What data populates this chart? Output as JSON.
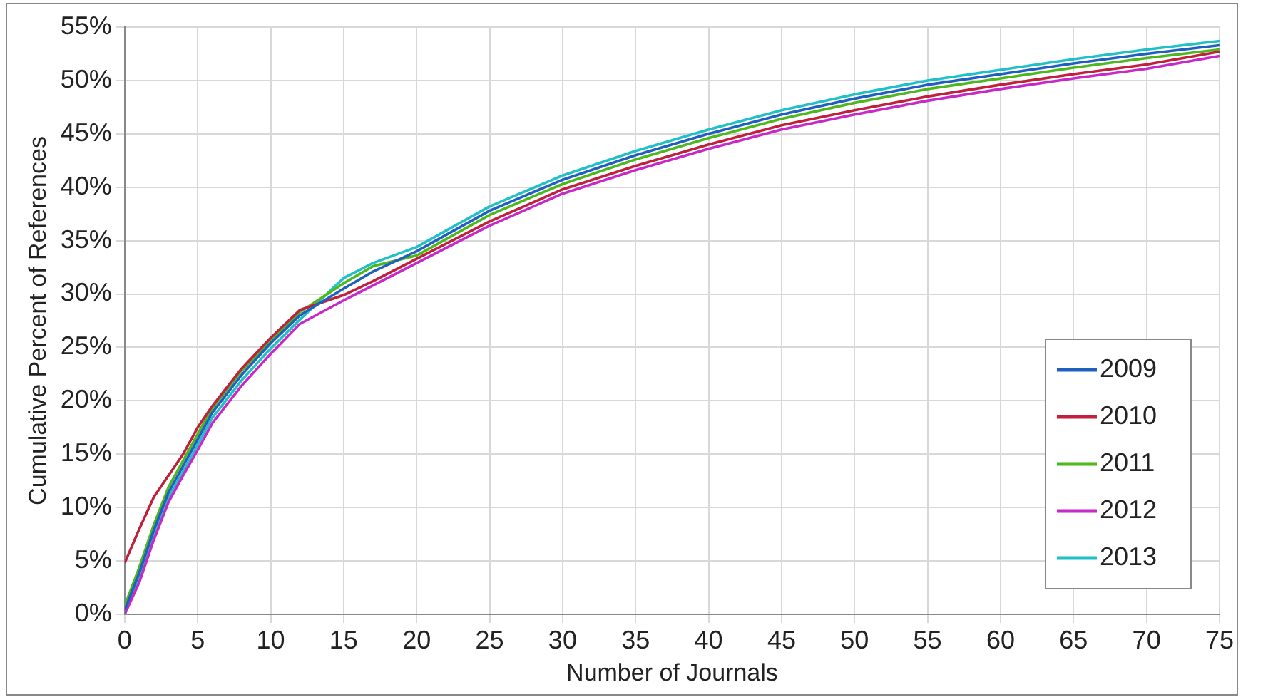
{
  "chart_data": {
    "type": "line",
    "xlabel": "Number of Journals",
    "ylabel": "Cumulative Percent of References",
    "x": [
      0,
      1,
      2,
      3,
      4,
      5,
      6,
      8,
      10,
      12,
      15,
      17,
      20,
      25,
      30,
      35,
      40,
      45,
      50,
      55,
      60,
      65,
      70,
      75
    ],
    "series": [
      {
        "name": "2009",
        "color": "#1f5fbf",
        "values": [
          0.4,
          3.9,
          7.9,
          11.4,
          13.9,
          16.4,
          18.9,
          22.4,
          25.4,
          28.0,
          30.5,
          32.1,
          34.0,
          37.8,
          40.7,
          43.0,
          45.0,
          46.8,
          48.3,
          49.6,
          50.6,
          51.6,
          52.5,
          53.3
        ]
      },
      {
        "name": "2010",
        "color": "#c0203c",
        "values": [
          4.8,
          8,
          11,
          13,
          15,
          17.5,
          19.5,
          23,
          25.9,
          28.5,
          29.9,
          31.2,
          33.3,
          36.8,
          39.8,
          42,
          44,
          45.8,
          47.2,
          48.5,
          49.6,
          50.6,
          51.5,
          52.7
        ]
      },
      {
        "name": "2011",
        "color": "#4cb81c",
        "values": [
          0.8,
          4.4,
          8.4,
          11.9,
          14.4,
          16.9,
          19.3,
          22.8,
          25.6,
          28.3,
          31.0,
          32.6,
          33.6,
          37.4,
          40.3,
          42.6,
          44.6,
          46.4,
          47.9,
          49.2,
          50.2,
          51.2,
          52.1,
          52.9
        ]
      },
      {
        "name": "2012",
        "color": "#c828c8",
        "values": [
          0,
          3.0,
          7.0,
          10.5,
          13.0,
          15.4,
          17.9,
          21.4,
          24.4,
          27.2,
          29.4,
          30.8,
          32.9,
          36.4,
          39.4,
          41.6,
          43.6,
          45.4,
          46.8,
          48.1,
          49.2,
          50.2,
          51.1,
          52.3
        ]
      },
      {
        "name": "2013",
        "color": "#20c0c8",
        "values": [
          0,
          3.4,
          7.4,
          10.9,
          13.4,
          15.9,
          18.4,
          21.9,
          24.9,
          27.6,
          31.5,
          32.9,
          34.4,
          38.2,
          41.1,
          43.4,
          45.4,
          47.2,
          48.7,
          50.0,
          51.0,
          52.0,
          52.9,
          53.7
        ]
      }
    ],
    "xlim": [
      0,
      75
    ],
    "xticks": [
      0,
      5,
      10,
      15,
      20,
      25,
      30,
      35,
      40,
      45,
      50,
      55,
      60,
      65,
      70,
      75
    ],
    "ylim": [
      0,
      55
    ],
    "yticks": [
      {
        "value": 0,
        "label": "0%"
      },
      {
        "value": 5,
        "label": "5%"
      },
      {
        "value": 10,
        "label": "10%"
      },
      {
        "value": 15,
        "label": "15%"
      },
      {
        "value": 20,
        "label": "20%"
      },
      {
        "value": 25,
        "label": "25%"
      },
      {
        "value": 30,
        "label": "30%"
      },
      {
        "value": 35,
        "label": "35%"
      },
      {
        "value": 40,
        "label": "40%"
      },
      {
        "value": 45,
        "label": "45%"
      },
      {
        "value": 50,
        "label": "50%"
      },
      {
        "value": 55,
        "label": "55%"
      }
    ],
    "grid": true,
    "legend": "bottom right",
    "marker": "none",
    "line_style": "solid"
  }
}
